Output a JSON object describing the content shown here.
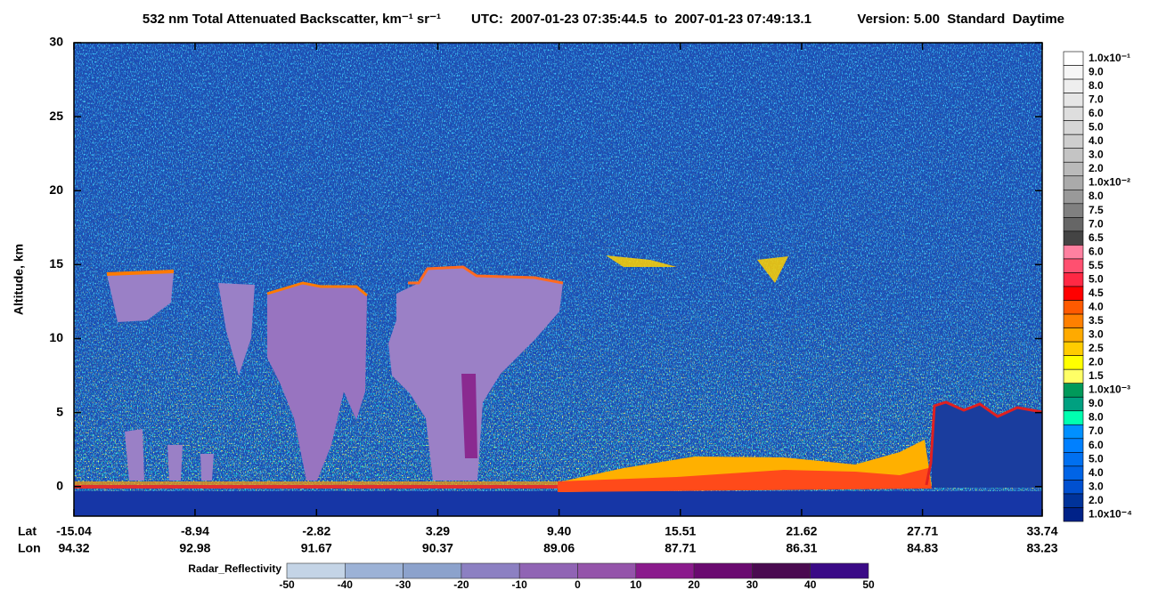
{
  "chart_data": {
    "type": "heatmap",
    "title": "532 nm Total Attenuated Backscatter, km⁻¹ sr⁻¹",
    "time_range": "UTC:  2007-01-23 07:35:44.5  to  2007-01-23 07:49:13.1",
    "version": "Version: 5.00  Standard  Daytime",
    "ylabel": "Altitude, km",
    "ylim": [
      -2,
      30
    ],
    "yticks": [
      0,
      5,
      10,
      15,
      20,
      25,
      30
    ],
    "xlim": [
      -15.04,
      33.74
    ],
    "x_row_labels": [
      "Lat",
      "Lon"
    ],
    "xticks": [
      -15.04,
      -8.94,
      -2.82,
      3.29,
      {
        "value": 9.4,
        "label": "9.40"
      },
      15.51,
      21.62,
      27.71,
      33.74
    ],
    "lon_ticks": [
      94.32,
      92.98,
      91.67,
      90.37,
      89.06,
      87.71,
      86.31,
      84.83,
      83.23
    ],
    "colorbar": {
      "labels": [
        "1.0x10⁻¹",
        "9.0",
        "8.0",
        "7.0",
        "6.0",
        "5.0",
        "4.0",
        "3.0",
        "2.0",
        "1.0x10⁻²",
        "8.0",
        "7.5",
        "7.0",
        "6.5",
        "6.0",
        "5.5",
        "5.0",
        "4.5",
        "4.0",
        "3.5",
        "3.0",
        "2.5",
        "2.0",
        "1.5",
        "1.0x10⁻³",
        "9.0",
        "8.0",
        "7.0",
        "6.0",
        "5.0",
        "4.0",
        "3.0",
        "2.0",
        "1.0x10⁻⁴"
      ],
      "colors": [
        "#ffffff",
        "#f6f6f6",
        "#eeeeee",
        "#e6e6e6",
        "#dedede",
        "#d6d6d6",
        "#cecece",
        "#c4c4c4",
        "#bababa",
        "#aaaaaa",
        "#999999",
        "#808080",
        "#666666",
        "#444444",
        "#ff80a0",
        "#ff5070",
        "#ff2844",
        "#ff0000",
        "#ff5a00",
        "#ff8000",
        "#ffaa00",
        "#ffcc00",
        "#ffff00",
        "#ffff66",
        "#00995a",
        "#00a080",
        "#00ffb0",
        "#0090ff",
        "#0080ff",
        "#0070f0",
        "#0064e6",
        "#0050d0",
        "#00339a",
        "#002288"
      ]
    },
    "reflectivity_colorbar": {
      "label": "Radar_Reflectivity",
      "lim": [
        -50,
        50
      ],
      "ticks": [
        -50,
        -40,
        -30,
        -20,
        -10,
        0,
        10,
        20,
        30,
        40,
        50
      ],
      "colors": [
        "#c4d4e6",
        "#9cb2d6",
        "#8ca2cc",
        "#8c80c2",
        "#9064b4",
        "#9454aa",
        "#8a1a8c",
        "#6a0a70",
        "#4a0a50",
        "#3a0a86"
      ]
    }
  }
}
